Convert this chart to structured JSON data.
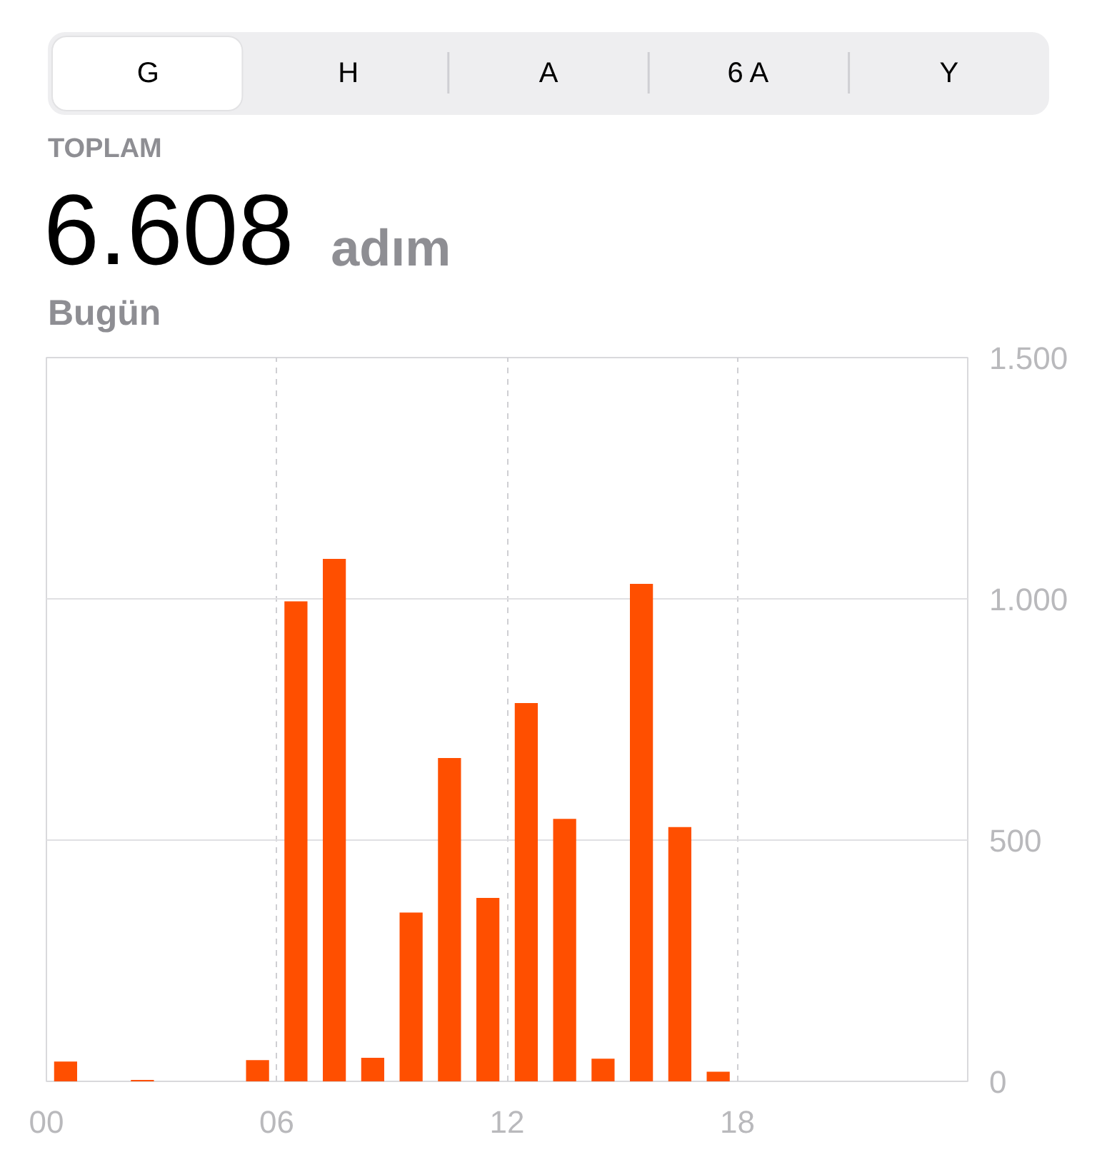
{
  "chart_data": {
    "type": "bar",
    "title": "6.608 adım",
    "subtitle": "Bugün",
    "annotations": [
      "G",
      "H",
      "A",
      "6 A",
      "Y",
      "TOPLAM"
    ],
    "x": [
      0.5,
      2.5,
      5.5,
      6.5,
      7.5,
      8.5,
      9.5,
      10.5,
      11.5,
      12.5,
      13.5,
      14.5,
      15.5,
      16.5,
      17.5
    ],
    "values": [
      41,
      3,
      44,
      995,
      1083,
      49,
      350,
      670,
      380,
      784,
      544,
      47,
      1031,
      527,
      20
    ],
    "color": "#ff4f00",
    "xlim": [
      0,
      24
    ],
    "xticks": [
      {
        "value": 0,
        "label": "00"
      },
      {
        "value": 6,
        "label": "06"
      },
      {
        "value": 12,
        "label": "12"
      },
      {
        "value": 18,
        "label": "18"
      }
    ],
    "ylim": [
      0,
      1500
    ],
    "yticks": [
      0,
      500,
      {
        "value": 1000,
        "label": "1.000"
      },
      {
        "value": 1500,
        "label": "1.500"
      }
    ],
    "grid": true
  }
}
